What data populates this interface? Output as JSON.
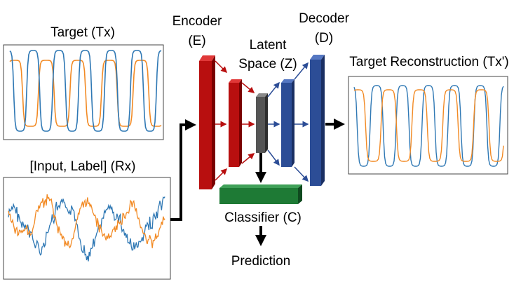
{
  "labels": {
    "target": "Target (Tx)",
    "input": "[Input, Label] (Rx)",
    "encoder_1": "Encoder",
    "encoder_2": "(E)",
    "latent_1": "Latent",
    "latent_2": "Space (Z)",
    "decoder_1": "Decoder",
    "decoder_2": "(D)",
    "reconstruction": "Target Reconstruction (Tx')",
    "classifier": "Classifier (C)",
    "prediction": "Prediction"
  },
  "colors": {
    "series_blue": "#2f78b4",
    "series_orange": "#f28a24",
    "encoder": "#b80f0f",
    "latent": "#555555",
    "decoder": "#2c4d96",
    "classifier": "#1e7a35",
    "arrow": "#000000"
  }
}
